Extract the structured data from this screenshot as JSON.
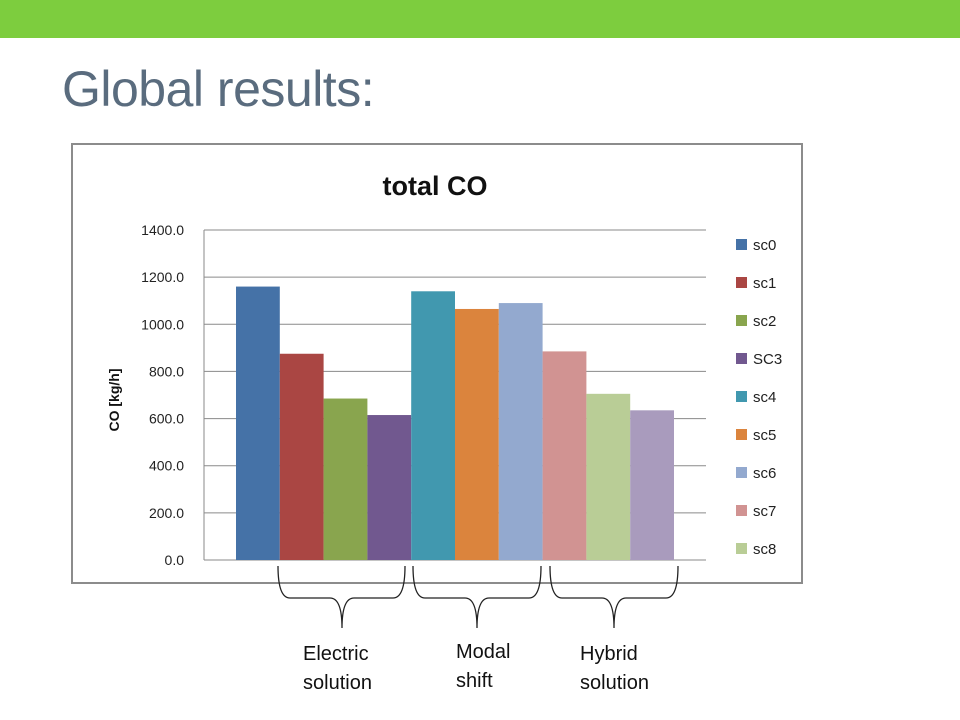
{
  "slide": {
    "title": "Global results:",
    "accent_color": "#7dcd3e",
    "title_color": "#5a6c7e"
  },
  "chart_data": {
    "type": "bar",
    "title": "total CO",
    "xlabel": "",
    "ylabel": "CO [kg/h]",
    "ylim": [
      0,
      1400
    ],
    "yticks": [
      "0.0",
      "200.0",
      "400.0",
      "600.0",
      "800.0",
      "1000.0",
      "1200.0",
      "1400.0"
    ],
    "grid": true,
    "legend_position": "right",
    "series": [
      {
        "name": "sc0",
        "value": 1160,
        "color": "#4572a7"
      },
      {
        "name": "sc1",
        "value": 875,
        "color": "#aa4643"
      },
      {
        "name": "sc2",
        "value": 685,
        "color": "#89a54e"
      },
      {
        "name": "SC3",
        "value": 615,
        "color": "#71588f"
      },
      {
        "name": "sc4",
        "value": 1140,
        "color": "#4198af"
      },
      {
        "name": "sc5",
        "value": 1065,
        "color": "#db843d"
      },
      {
        "name": "sc6",
        "value": 1090,
        "color": "#93a9cf"
      },
      {
        "name": "sc7",
        "value": 885,
        "color": "#d19392"
      },
      {
        "name": "sc8",
        "value": 705,
        "color": "#b9cd96"
      },
      {
        "name": "",
        "value": 635,
        "color": "#a99bbd"
      }
    ]
  },
  "groups": [
    {
      "label": "Electric\nsolution"
    },
    {
      "label": "Modal\nshift"
    },
    {
      "label": "Hybrid\nsolution"
    }
  ]
}
